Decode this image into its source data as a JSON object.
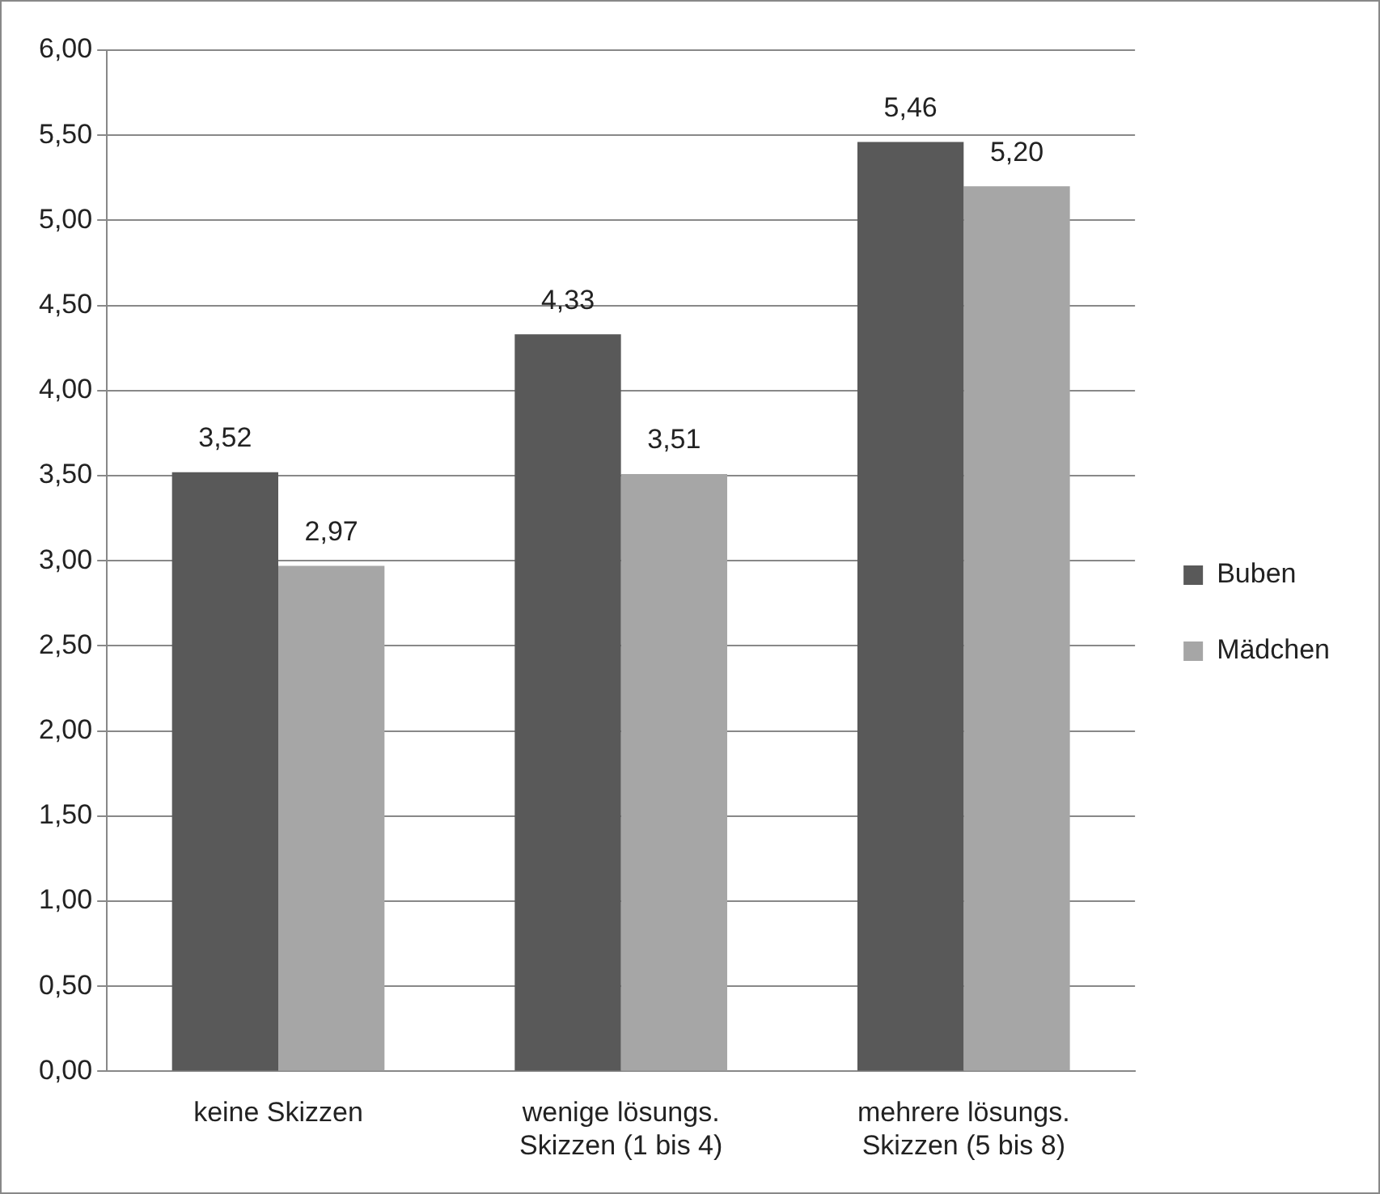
{
  "chart_data": {
    "type": "bar",
    "categories": [
      "keine Skizzen",
      "wenige lösungs.\nSkizzen (1 bis 4)",
      "mehrere lösungs.\nSkizzen (5 bis 8)"
    ],
    "series": [
      {
        "name": "Buben",
        "color": "#595959",
        "values": [
          3.52,
          4.33,
          5.46
        ],
        "value_labels": [
          "3,52",
          "4,33",
          "5,46"
        ]
      },
      {
        "name": "Mädchen",
        "color": "#a6a6a6",
        "values": [
          2.97,
          3.51,
          5.2
        ],
        "value_labels": [
          "2,97",
          "3,51",
          "5,20"
        ]
      }
    ],
    "ylim": [
      0,
      6
    ],
    "yticks": [
      {
        "value": 0,
        "label": "0,00"
      },
      {
        "value": 0.5,
        "label": "0,50"
      },
      {
        "value": 1,
        "label": "1,00"
      },
      {
        "value": 1.5,
        "label": "1,50"
      },
      {
        "value": 2,
        "label": "2,00"
      },
      {
        "value": 2.5,
        "label": "2,50"
      },
      {
        "value": 3,
        "label": "3,00"
      },
      {
        "value": 3.5,
        "label": "3,50"
      },
      {
        "value": 4,
        "label": "4,00"
      },
      {
        "value": 4.5,
        "label": "4,50"
      },
      {
        "value": 5,
        "label": "5,00"
      },
      {
        "value": 5.5,
        "label": "5,50"
      },
      {
        "value": 6,
        "label": "6,00"
      }
    ],
    "grid": "y",
    "legend": "right"
  }
}
